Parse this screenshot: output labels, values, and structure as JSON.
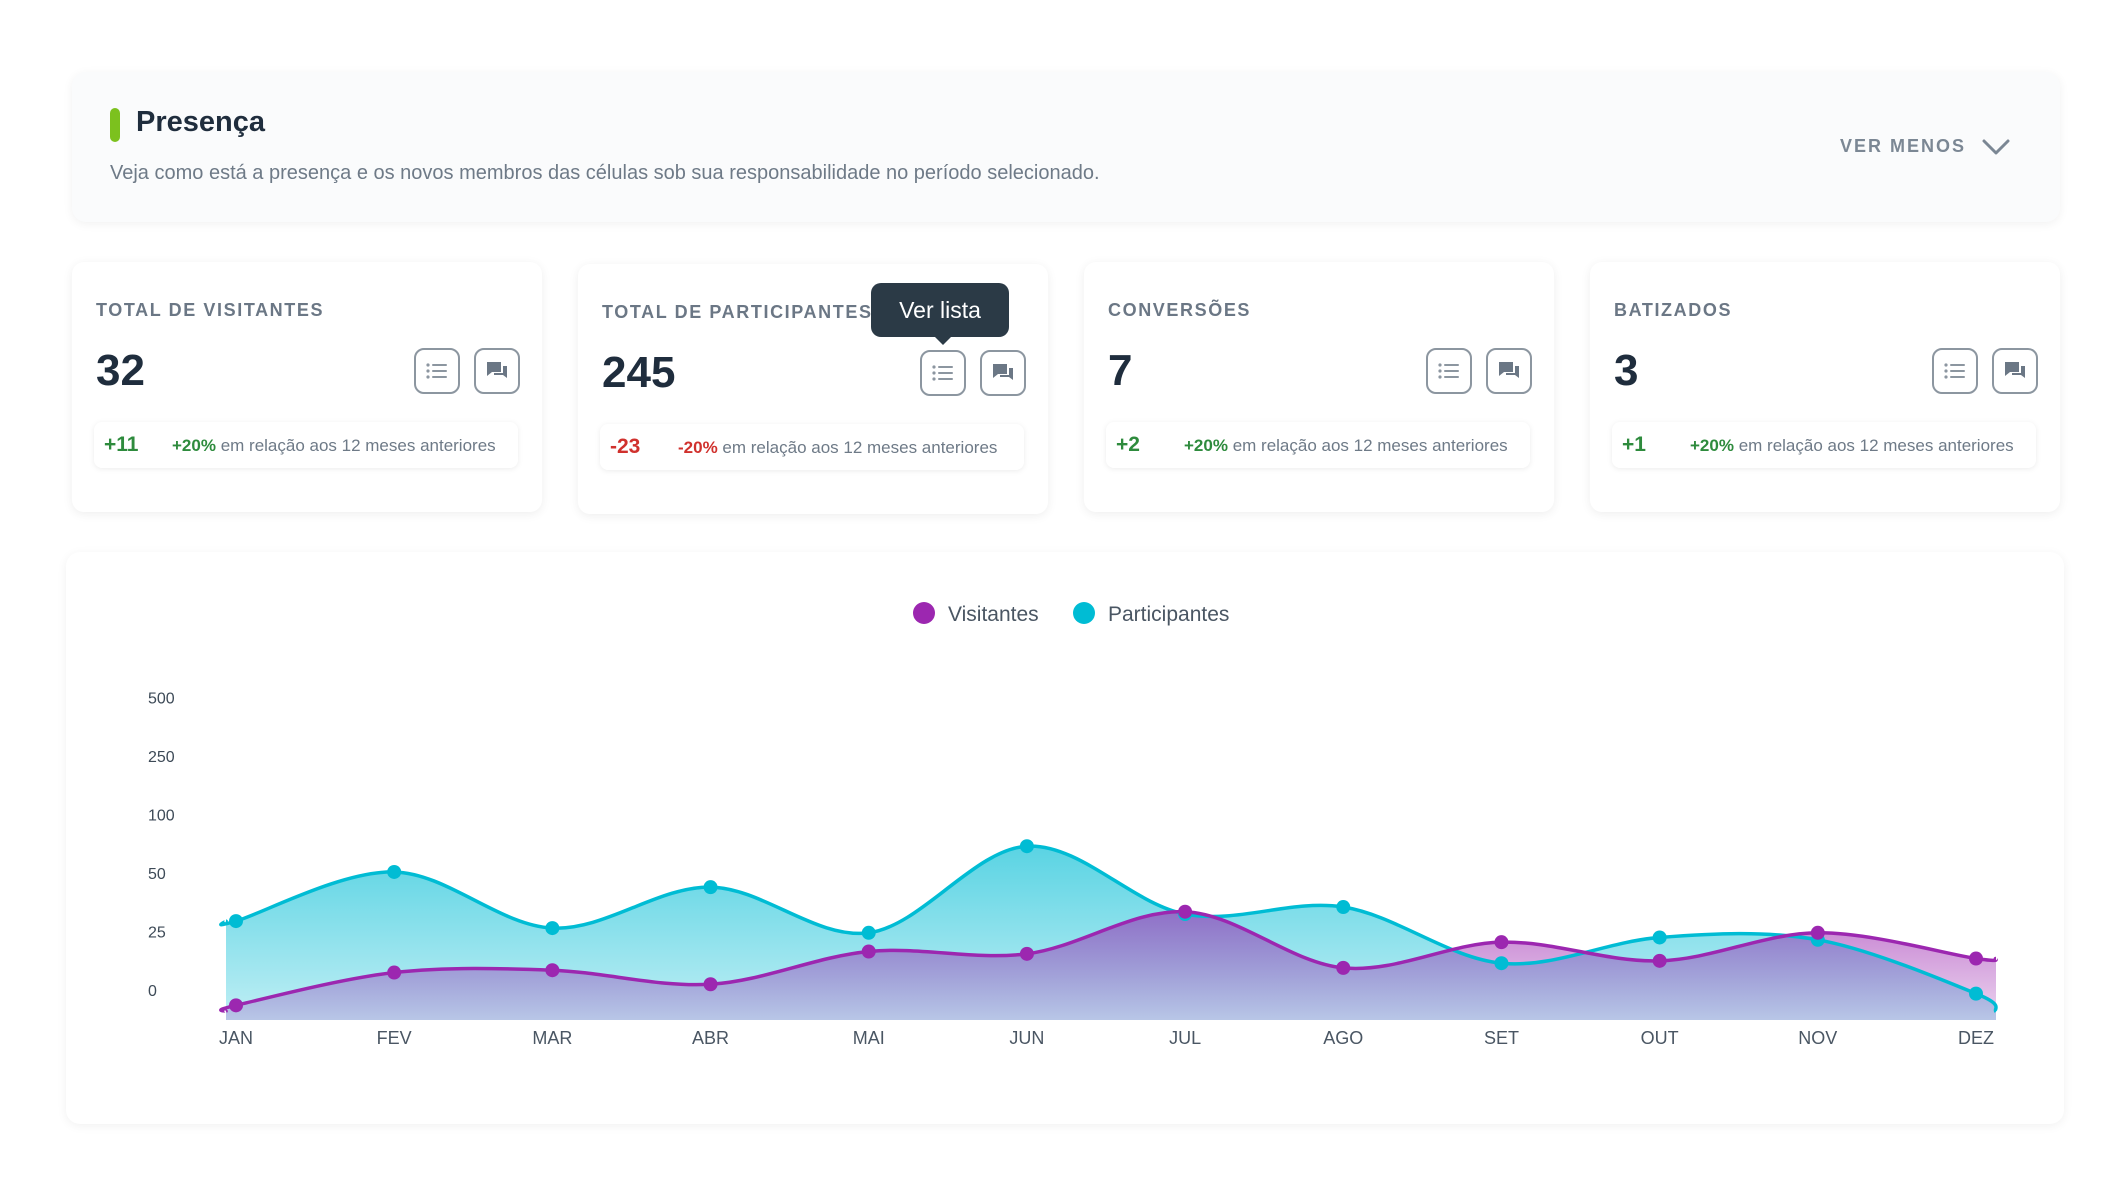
{
  "header": {
    "title": "Presença",
    "subtitle": "Veja como está a presença e os novos membros das células sob sua responsabilidade no período selecionado.",
    "toggle_label": "VER MENOS",
    "accent_color": "#7cc11e"
  },
  "cards": [
    {
      "label": "TOTAL DE VISITANTES",
      "value": "32",
      "delta": "+11",
      "pct": "+20%",
      "comparison": "em relação aos 12 meses anteriores",
      "trend": "up"
    },
    {
      "label": "TOTAL DE PARTICIPANTES",
      "value": "245",
      "delta": "-23",
      "pct": "-20%",
      "comparison": "em relação aos 12 meses anteriores",
      "trend": "down"
    },
    {
      "label": "CONVERSÕES",
      "value": "7",
      "delta": "+2",
      "pct": "+20%",
      "comparison": "em relação aos 12 meses anteriores",
      "trend": "up"
    },
    {
      "label": "BATIZADOS",
      "value": "3",
      "delta": "+1",
      "pct": "+20%",
      "comparison": "em relação aos 12 meses anteriores",
      "trend": "up"
    }
  ],
  "tooltip": {
    "text": "Ver lista"
  },
  "icons": {
    "list": "list-icon",
    "chat": "chat-icon",
    "toggle": "chevron-down-icon"
  },
  "colors": {
    "positive": "#2e8b3d",
    "negative": "#d0312d",
    "visitantes": "#9c27b0",
    "participantes": "#00bcd4"
  },
  "chart_data": {
    "type": "area",
    "categories": [
      "JAN",
      "FEV",
      "MAR",
      "ABR",
      "MAI",
      "JUN",
      "JUL",
      "AGO",
      "SET",
      "OUT",
      "NOV",
      "DEZ"
    ],
    "y_ticks": [
      "500",
      "250",
      "100",
      "50",
      "25",
      "0"
    ],
    "y_tick_values": [
      500,
      250,
      100,
      50,
      25,
      0
    ],
    "legend_position": "top-center",
    "grid": false,
    "series": [
      {
        "name": "Visitantes",
        "color": "#9c27b0",
        "values": [
          2,
          16,
          17,
          11,
          25,
          24,
          42,
          18,
          29,
          21,
          33,
          22
        ]
      },
      {
        "name": "Participantes",
        "color": "#00bcd4",
        "values": [
          38,
          68,
          35,
          55,
          33,
          90,
          41,
          44,
          20,
          31,
          30,
          7
        ]
      }
    ]
  }
}
